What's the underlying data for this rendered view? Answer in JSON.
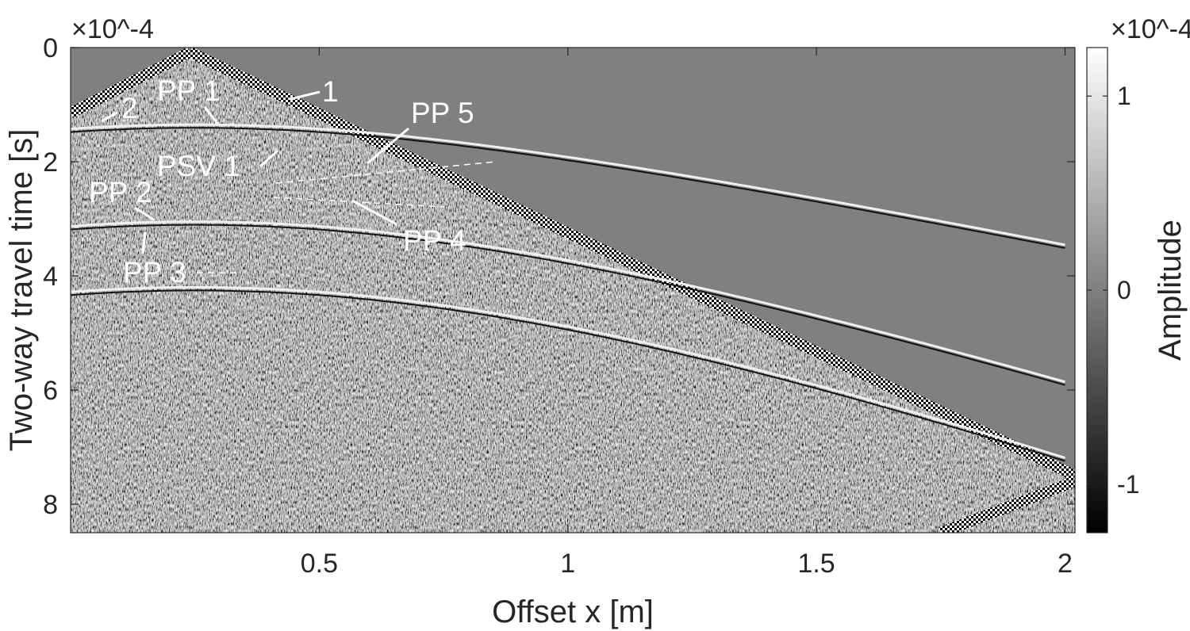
{
  "chart_data": {
    "type": "heatmap",
    "title": "",
    "xlabel": "Offset x [m]",
    "ylabel": "Two-way travel time [s]",
    "x_ticks": [
      0.5,
      1,
      1.5,
      2
    ],
    "x_tick_labels": [
      "0.5",
      "1",
      "1.5",
      "2"
    ],
    "xlim": [
      0.0,
      2.02
    ],
    "y_ticks": [
      0,
      2,
      4,
      6,
      8
    ],
    "y_tick_labels": [
      "0",
      "2",
      "4",
      "6",
      "8"
    ],
    "ylim": [
      0,
      8.5
    ],
    "y_reversed": true,
    "y_exponent_label": "×10^-4",
    "colorbar": {
      "label": "Amplitude",
      "exponent_label": "×10^-4",
      "ticks": [
        -1,
        0,
        1
      ],
      "tick_labels": [
        "-1",
        "0",
        "1"
      ],
      "range": [
        -1.25,
        1.25
      ],
      "colormap": "gray",
      "color_min": "#000000",
      "color_max": "#ffffff"
    },
    "annotations": [
      {
        "text": "1"
      },
      {
        "text": "2"
      },
      {
        "text": "PP 1"
      },
      {
        "text": "PP 5"
      },
      {
        "text": "PSV 1"
      },
      {
        "text": "PP 2"
      },
      {
        "text": "PP 4"
      },
      {
        "text": "PP 3"
      }
    ],
    "events": [
      {
        "id": "direct-wave",
        "type": "linear",
        "points": [
          [
            0.24,
            0.08
          ],
          [
            2.02,
            7.5
          ]
        ]
      },
      {
        "id": "direct-wave-left",
        "type": "linear",
        "points": [
          [
            0.0,
            1.15
          ],
          [
            0.24,
            0.08
          ]
        ]
      },
      {
        "id": "pp1",
        "type": "hyperbola",
        "t0": 1.35,
        "x0": 0.25,
        "v": 0.55
      },
      {
        "id": "pp2",
        "type": "hyperbola",
        "t0": 3.05,
        "x0": 0.25,
        "v": 0.35
      },
      {
        "id": "pp3",
        "type": "hyperbola",
        "t0": 4.2,
        "x0": 0.25,
        "v": 0.3
      },
      {
        "id": "rebound",
        "type": "linear",
        "points": [
          [
            1.75,
            8.5
          ],
          [
            2.02,
            7.6
          ]
        ]
      }
    ]
  }
}
